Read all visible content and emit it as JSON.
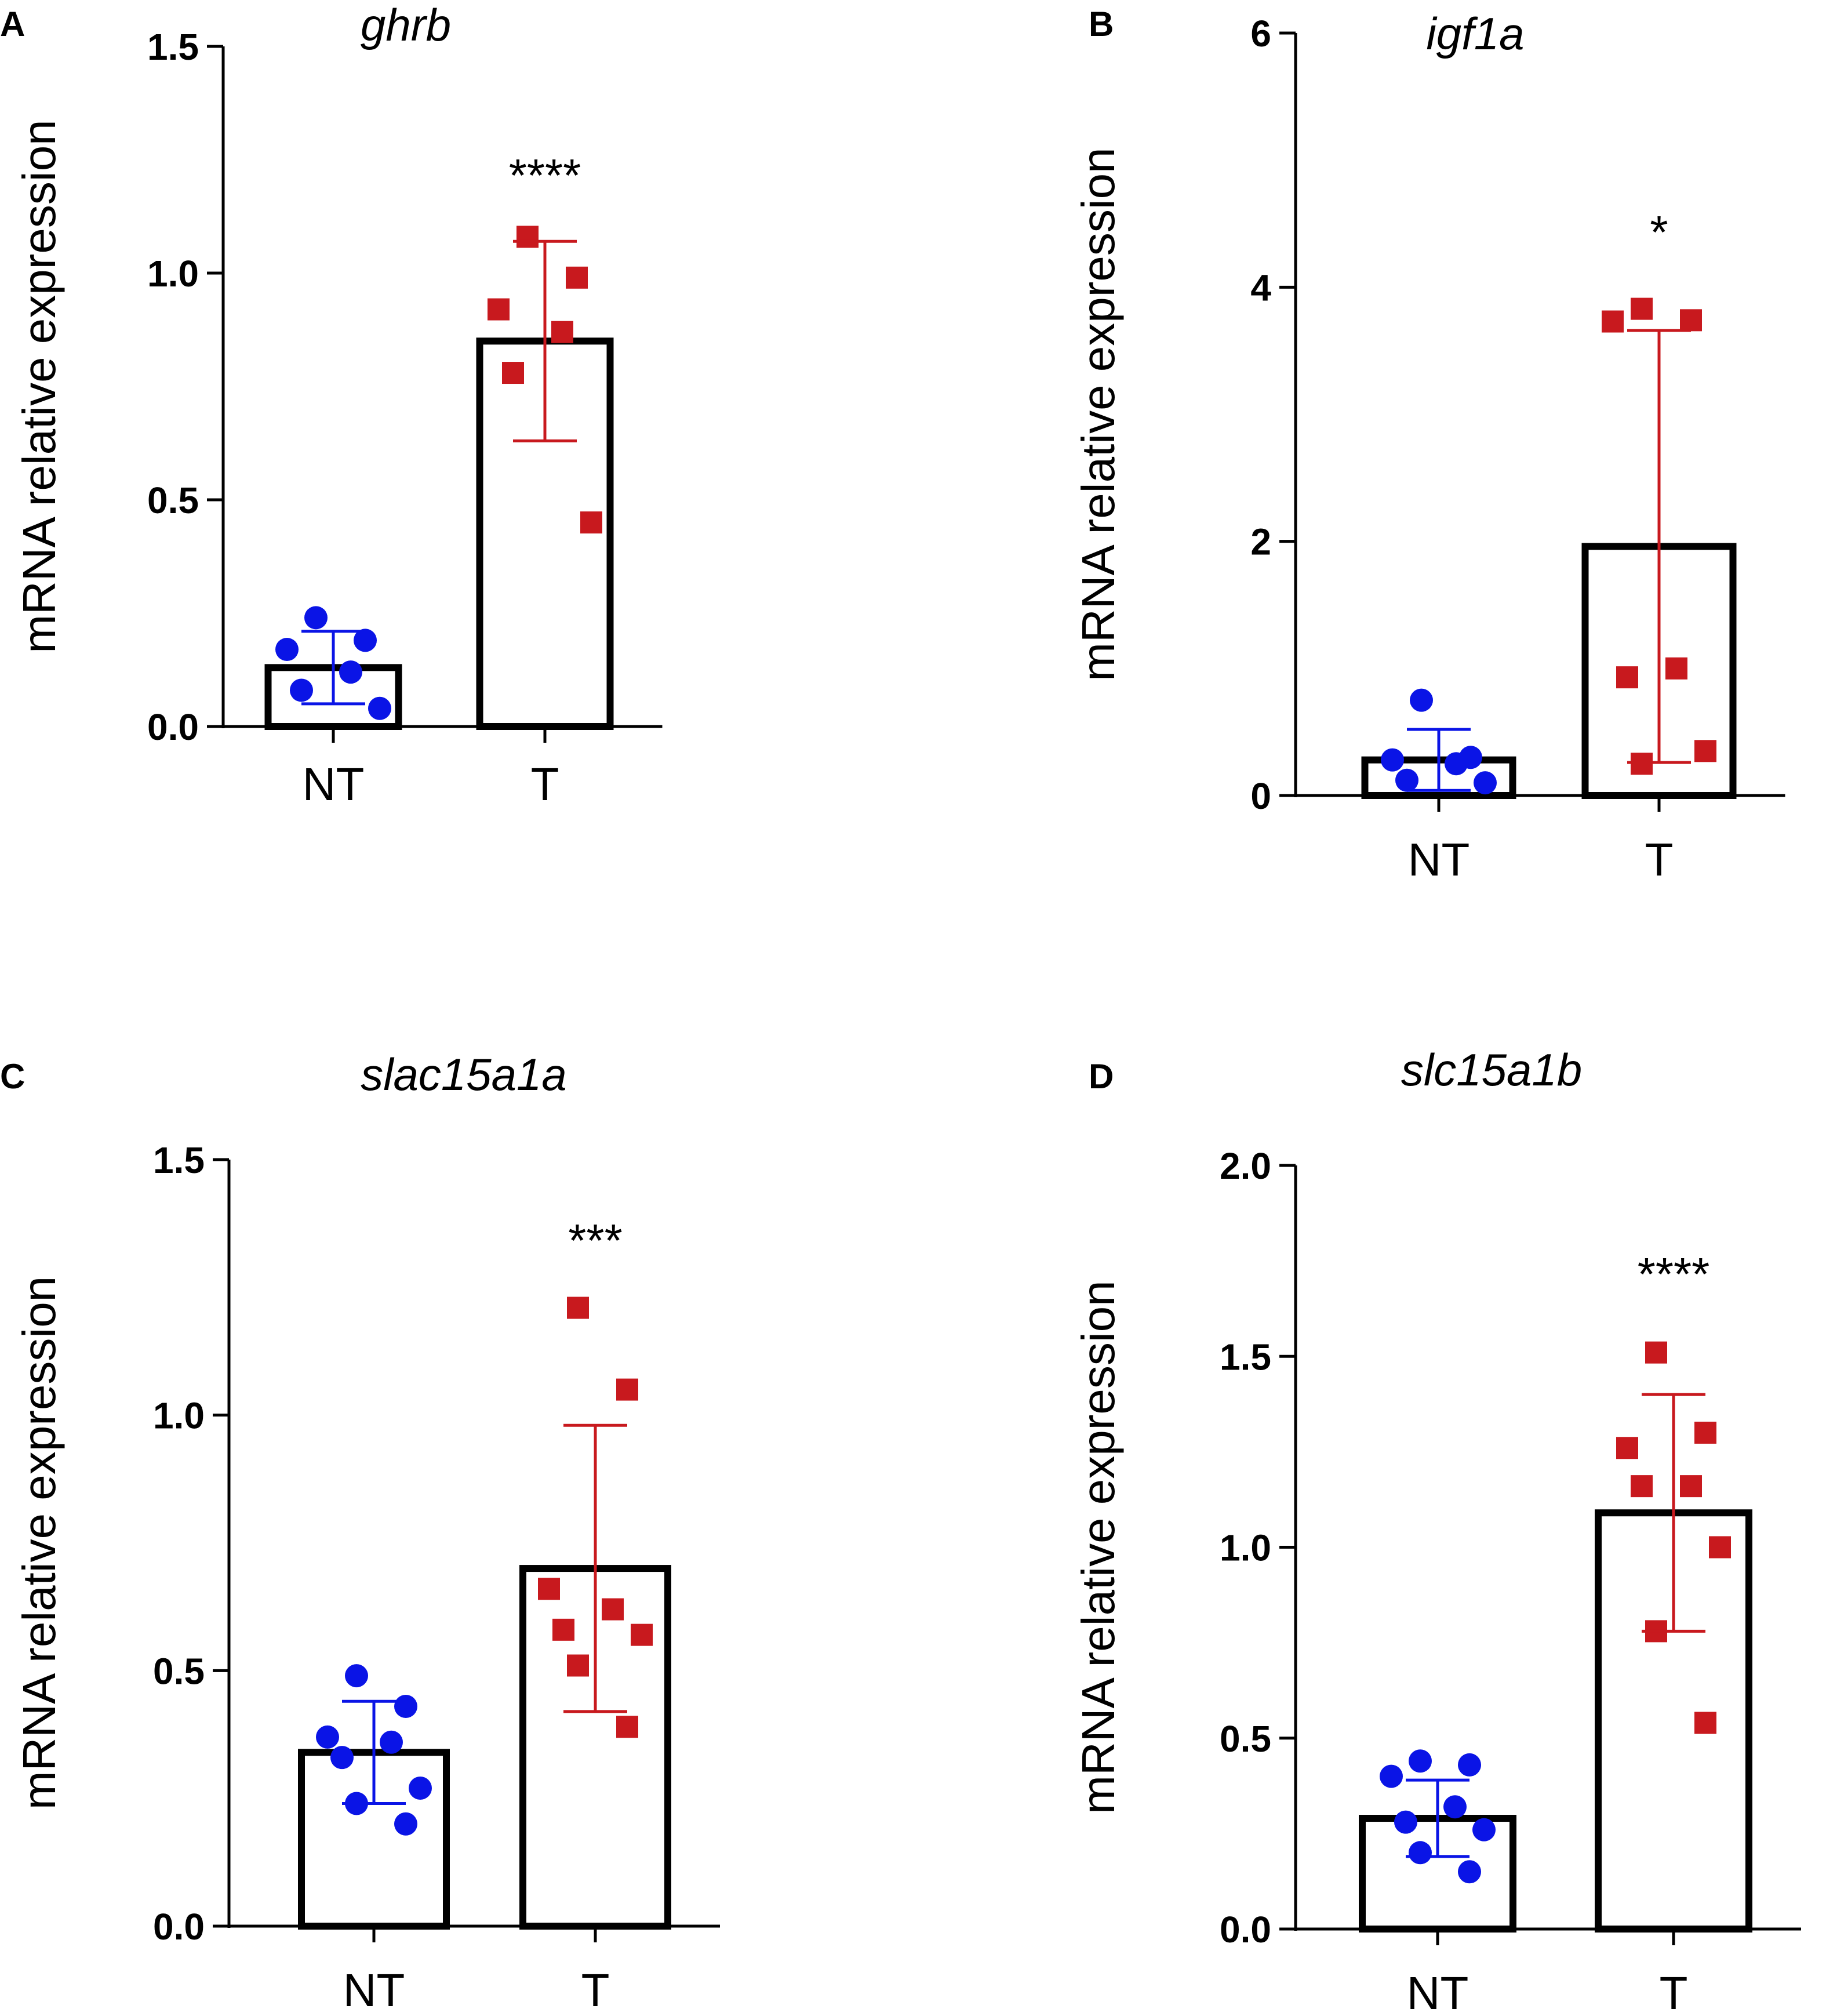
{
  "figure": {
    "colors": {
      "NT": "#0a14e6",
      "T": "#c8191e",
      "axis": "#000000",
      "bar_fill": "#ffffff"
    }
  },
  "chart_data": [
    {
      "panel": "A",
      "type": "bar",
      "title": "ghrb",
      "ylabel": "mRNA relative expression",
      "categories": [
        "NT",
        "T"
      ],
      "ylim": [
        0,
        1.5
      ],
      "yticks": [
        "0.0",
        "0.5",
        "1.0",
        "1.5"
      ],
      "means": [
        0.13,
        0.85
      ],
      "sd": [
        0.08,
        0.22
      ],
      "points": [
        [
          0.24,
          0.19,
          0.17,
          0.12,
          0.08,
          0.04
        ],
        [
          1.08,
          0.99,
          0.92,
          0.87,
          0.78,
          0.45
        ]
      ],
      "significance": "****"
    },
    {
      "panel": "B",
      "type": "bar",
      "title": "igf1a",
      "ylabel": "mRNA relative expression",
      "categories": [
        "NT",
        "T"
      ],
      "ylim": [
        0,
        6
      ],
      "yticks": [
        "0",
        "2",
        "4",
        "6"
      ],
      "means": [
        0.28,
        1.96
      ],
      "sd": [
        0.24,
        1.7
      ],
      "points": [
        [
          0.75,
          0.3,
          0.28,
          0.25,
          0.12,
          0.1
        ],
        [
          3.83,
          3.74,
          3.73,
          1.0,
          0.93,
          0.35,
          0.25
        ]
      ],
      "significance": "*"
    },
    {
      "panel": "C",
      "type": "bar",
      "title": "slac15a1a",
      "ylabel": "mRNA relative expression",
      "categories": [
        "NT",
        "T"
      ],
      "ylim": [
        0,
        1.5
      ],
      "yticks": [
        "0.0",
        "0.5",
        "1.0",
        "1.5"
      ],
      "means": [
        0.34,
        0.7
      ],
      "sd": [
        0.1,
        0.28
      ],
      "points": [
        [
          0.49,
          0.43,
          0.37,
          0.36,
          0.33,
          0.27,
          0.24,
          0.2
        ],
        [
          1.21,
          1.05,
          0.66,
          0.62,
          0.58,
          0.57,
          0.51,
          0.39
        ]
      ],
      "significance": "***"
    },
    {
      "panel": "D",
      "type": "bar",
      "title": "slc15a1b",
      "ylabel": "mRNA relative expression",
      "categories": [
        "NT",
        "T"
      ],
      "ylim": [
        0,
        2.0
      ],
      "yticks": [
        "0.0",
        "0.5",
        "1.0",
        "1.5",
        "2.0"
      ],
      "means": [
        0.29,
        1.09
      ],
      "sd": [
        0.1,
        0.31
      ],
      "points": [
        [
          0.44,
          0.43,
          0.4,
          0.32,
          0.28,
          0.26,
          0.2,
          0.15
        ],
        [
          1.51,
          1.3,
          1.26,
          1.16,
          1.16,
          1.0,
          0.78,
          0.54
        ]
      ],
      "significance": "****"
    }
  ]
}
